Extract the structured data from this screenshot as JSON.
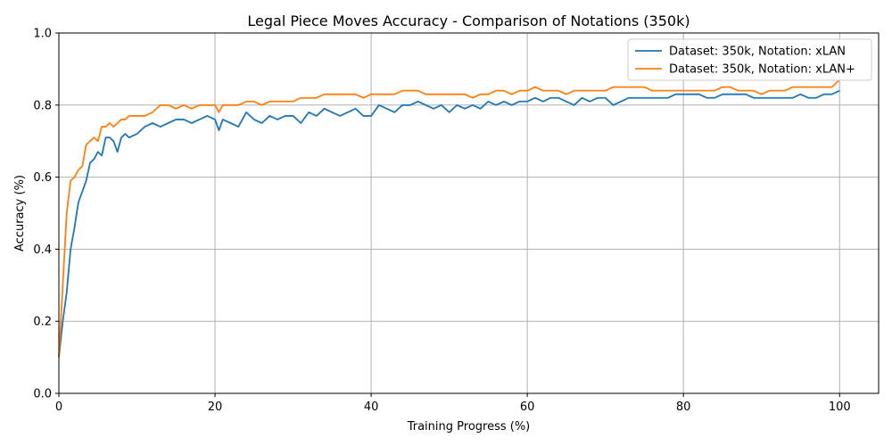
{
  "chart_data": {
    "type": "line",
    "title": "Legal Piece Moves Accuracy - Comparison of Notations (350k)",
    "xlabel": "Training Progress (%)",
    "ylabel": "Accuracy (%)",
    "xlim": [
      0,
      105
    ],
    "ylim": [
      0,
      1.0
    ],
    "xticks": [
      0,
      20,
      40,
      60,
      80,
      100
    ],
    "xtick_labels": [
      "0",
      "20",
      "40",
      "60",
      "80",
      "100"
    ],
    "yticks": [
      0,
      0.2,
      0.4,
      0.6,
      0.8,
      1.0
    ],
    "ytick_labels": [
      "0.0",
      "0.2",
      "0.4",
      "0.6",
      "0.8",
      "1.0"
    ],
    "grid": true,
    "legend_position": "top-right",
    "series": [
      {
        "name": "Dataset: 350k, Notation: xLAN",
        "color": "#1f77b4",
        "x": [
          0,
          0.5,
          1,
          1.5,
          2,
          2.5,
          3,
          3.5,
          4,
          4.5,
          5,
          5.5,
          6,
          6.5,
          7,
          7.5,
          8,
          8.5,
          9,
          10,
          11,
          12,
          13,
          14,
          15,
          16,
          17,
          18,
          19,
          20,
          20.5,
          21,
          22,
          23,
          24,
          25,
          26,
          27,
          28,
          29,
          30,
          31,
          32,
          33,
          34,
          35,
          36,
          37,
          38,
          39,
          40,
          41,
          42,
          43,
          44,
          45,
          46,
          47,
          48,
          49,
          50,
          51,
          52,
          53,
          54,
          55,
          56,
          57,
          58,
          59,
          60,
          61,
          62,
          63,
          64,
          65,
          66,
          67,
          68,
          69,
          70,
          71,
          72,
          73,
          74,
          75,
          76,
          77,
          78,
          79,
          80,
          81,
          82,
          83,
          84,
          85,
          86,
          87,
          88,
          89,
          90,
          91,
          92,
          93,
          94,
          95,
          96,
          97,
          98,
          99,
          100
        ],
        "y": [
          0.1,
          0.2,
          0.28,
          0.4,
          0.46,
          0.53,
          0.56,
          0.59,
          0.64,
          0.65,
          0.67,
          0.66,
          0.71,
          0.71,
          0.7,
          0.67,
          0.71,
          0.72,
          0.71,
          0.72,
          0.74,
          0.75,
          0.74,
          0.75,
          0.76,
          0.76,
          0.75,
          0.76,
          0.77,
          0.76,
          0.73,
          0.76,
          0.75,
          0.74,
          0.78,
          0.76,
          0.75,
          0.77,
          0.76,
          0.77,
          0.77,
          0.75,
          0.78,
          0.77,
          0.79,
          0.78,
          0.77,
          0.78,
          0.79,
          0.77,
          0.77,
          0.8,
          0.79,
          0.78,
          0.8,
          0.8,
          0.81,
          0.8,
          0.79,
          0.8,
          0.78,
          0.8,
          0.79,
          0.8,
          0.79,
          0.81,
          0.8,
          0.81,
          0.8,
          0.81,
          0.81,
          0.82,
          0.81,
          0.82,
          0.82,
          0.81,
          0.8,
          0.82,
          0.81,
          0.82,
          0.82,
          0.8,
          0.81,
          0.82,
          0.82,
          0.82,
          0.82,
          0.82,
          0.82,
          0.83,
          0.83,
          0.83,
          0.83,
          0.82,
          0.82,
          0.83,
          0.83,
          0.83,
          0.83,
          0.82,
          0.82,
          0.82,
          0.82,
          0.82,
          0.82,
          0.83,
          0.82,
          0.82,
          0.83,
          0.83,
          0.84
        ]
      },
      {
        "name": "Dataset: 350k, Notation: xLAN+",
        "color": "#ff7f0e",
        "x": [
          0,
          0.5,
          1,
          1.5,
          2,
          2.5,
          3,
          3.5,
          4,
          4.5,
          5,
          5.5,
          6,
          6.5,
          7,
          7.5,
          8,
          8.5,
          9,
          10,
          11,
          12,
          13,
          14,
          15,
          16,
          17,
          18,
          19,
          20,
          20.5,
          21,
          22,
          23,
          24,
          25,
          26,
          27,
          28,
          29,
          30,
          31,
          32,
          33,
          34,
          35,
          36,
          37,
          38,
          39,
          40,
          41,
          42,
          43,
          44,
          45,
          46,
          47,
          48,
          49,
          50,
          51,
          52,
          53,
          54,
          55,
          56,
          57,
          58,
          59,
          60,
          61,
          62,
          63,
          64,
          65,
          66,
          67,
          68,
          69,
          70,
          71,
          72,
          73,
          74,
          75,
          76,
          77,
          78,
          79,
          80,
          81,
          82,
          83,
          84,
          85,
          86,
          87,
          88,
          89,
          90,
          91,
          92,
          93,
          94,
          95,
          96,
          97,
          98,
          99,
          100
        ],
        "y": [
          0.1,
          0.3,
          0.5,
          0.59,
          0.6,
          0.62,
          0.63,
          0.69,
          0.7,
          0.71,
          0.7,
          0.74,
          0.74,
          0.75,
          0.74,
          0.75,
          0.76,
          0.76,
          0.77,
          0.77,
          0.77,
          0.78,
          0.8,
          0.8,
          0.79,
          0.8,
          0.79,
          0.8,
          0.8,
          0.8,
          0.78,
          0.8,
          0.8,
          0.8,
          0.81,
          0.81,
          0.8,
          0.81,
          0.81,
          0.81,
          0.81,
          0.82,
          0.82,
          0.82,
          0.83,
          0.83,
          0.83,
          0.83,
          0.83,
          0.82,
          0.83,
          0.83,
          0.83,
          0.83,
          0.84,
          0.84,
          0.84,
          0.83,
          0.83,
          0.83,
          0.83,
          0.83,
          0.83,
          0.82,
          0.83,
          0.83,
          0.84,
          0.84,
          0.83,
          0.84,
          0.84,
          0.85,
          0.84,
          0.84,
          0.84,
          0.83,
          0.84,
          0.84,
          0.84,
          0.84,
          0.84,
          0.85,
          0.85,
          0.85,
          0.85,
          0.85,
          0.84,
          0.84,
          0.84,
          0.84,
          0.84,
          0.84,
          0.84,
          0.84,
          0.84,
          0.85,
          0.85,
          0.84,
          0.84,
          0.84,
          0.83,
          0.84,
          0.84,
          0.84,
          0.85,
          0.85,
          0.85,
          0.85,
          0.85,
          0.85,
          0.87
        ]
      }
    ]
  }
}
